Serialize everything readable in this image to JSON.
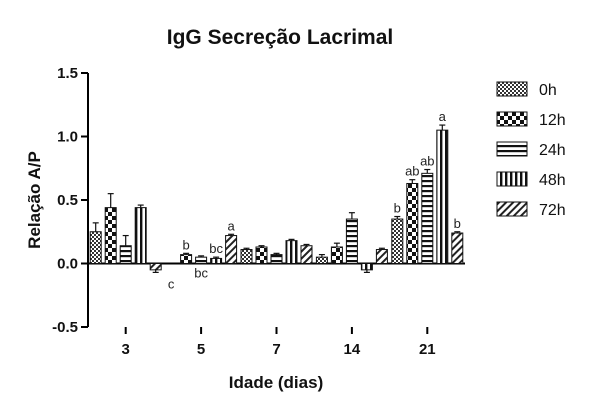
{
  "chart_data": {
    "type": "bar",
    "title": "IgG Secreção Lacrimal",
    "xlabel": "Idade (dias)",
    "ylabel": "Relação A/P",
    "ylim": [
      -0.5,
      1.5
    ],
    "yticks": [
      "1.5",
      "1.0",
      "0.5",
      "0.0",
      "-0.5"
    ],
    "ytick_values": [
      1.5,
      1.0,
      0.5,
      0.0,
      -0.5
    ],
    "categories": [
      "3",
      "5",
      "7",
      "14",
      "21"
    ],
    "grid": false,
    "legend_position": "right",
    "series": [
      {
        "name": "0h",
        "pattern": "checker-fine",
        "values": [
          0.25,
          0.0,
          0.11,
          0.05,
          0.35
        ],
        "errors": [
          0.07,
          0.0,
          0.01,
          0.02,
          0.02
        ]
      },
      {
        "name": "12h",
        "pattern": "checker-large",
        "values": [
          0.44,
          0.07,
          0.13,
          0.13,
          0.63
        ],
        "errors": [
          0.11,
          0.01,
          0.01,
          0.03,
          0.03
        ]
      },
      {
        "name": "24h",
        "pattern": "horizontal",
        "values": [
          0.14,
          0.05,
          0.07,
          0.35,
          0.71
        ],
        "errors": [
          0.08,
          0.01,
          0.01,
          0.05,
          0.03
        ]
      },
      {
        "name": "48h",
        "pattern": "vertical",
        "values": [
          0.44,
          0.04,
          0.18,
          -0.05,
          1.05
        ],
        "errors": [
          0.02,
          0.01,
          0.01,
          0.02,
          0.04
        ]
      },
      {
        "name": "72h",
        "pattern": "diagonal",
        "values": [
          -0.05,
          0.22,
          0.14,
          0.11,
          0.24
        ],
        "errors": [
          0.02,
          0.01,
          0.01,
          0.01,
          0.01
        ]
      }
    ],
    "annotations": [
      {
        "text": "c",
        "category": "5",
        "series": "0h"
      },
      {
        "text": "b",
        "category": "5",
        "series": "12h"
      },
      {
        "text": "bc",
        "category": "5",
        "series": "24h"
      },
      {
        "text": "bc",
        "category": "5",
        "series": "48h"
      },
      {
        "text": "a",
        "category": "5",
        "series": "72h"
      },
      {
        "text": "b",
        "category": "21",
        "series": "0h"
      },
      {
        "text": "ab",
        "category": "21",
        "series": "12h"
      },
      {
        "text": "ab",
        "category": "21",
        "series": "24h"
      },
      {
        "text": "a",
        "category": "21",
        "series": "48h"
      },
      {
        "text": "b",
        "category": "21",
        "series": "72h"
      }
    ]
  }
}
